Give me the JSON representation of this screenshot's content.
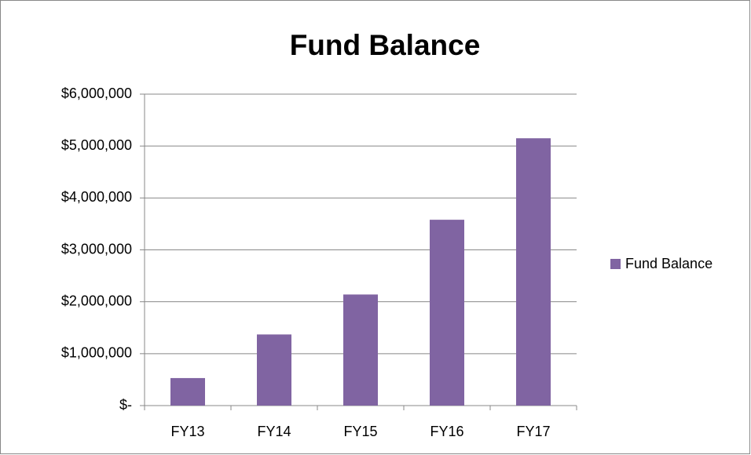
{
  "chart_data": {
    "type": "bar",
    "title": "Fund Balance",
    "categories": [
      "FY13",
      "FY14",
      "FY15",
      "FY16",
      "FY17"
    ],
    "series": [
      {
        "name": "Fund Balance",
        "color": "#8064a2",
        "values": [
          530000,
          1370000,
          2140000,
          3580000,
          5150000
        ]
      }
    ],
    "ylim": [
      0,
      6000000
    ],
    "yticks": [
      {
        "value": 0,
        "label": "$-"
      },
      {
        "value": 1000000,
        "label": "$1,000,000"
      },
      {
        "value": 2000000,
        "label": "$2,000,000"
      },
      {
        "value": 3000000,
        "label": "$3,000,000"
      },
      {
        "value": 4000000,
        "label": "$4,000,000"
      },
      {
        "value": 5000000,
        "label": "$5,000,000"
      },
      {
        "value": 6000000,
        "label": "$6,000,000"
      }
    ],
    "grid": true,
    "legend": "right"
  }
}
